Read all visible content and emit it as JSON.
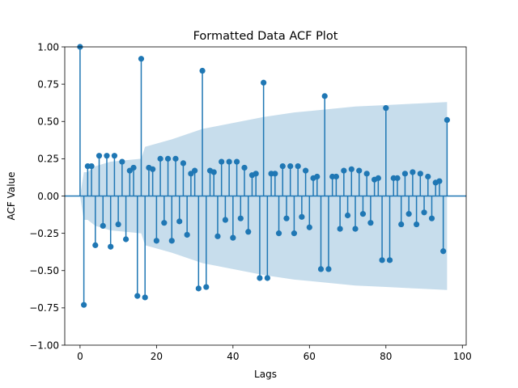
{
  "chart_data": {
    "type": "stem",
    "title": "Formatted Data ACF Plot",
    "xlabel": "Lags",
    "ylabel": "ACF Value",
    "xlim": [
      -4,
      101
    ],
    "ylim": [
      -1.0,
      1.0
    ],
    "x_ticks": [
      0,
      20,
      40,
      60,
      80,
      100
    ],
    "x_tick_labels": [
      "0",
      "20",
      "40",
      "60",
      "80",
      "100"
    ],
    "y_ticks": [
      -1.0,
      -0.75,
      -0.5,
      -0.25,
      0.0,
      0.25,
      0.5,
      0.75,
      1.0
    ],
    "y_tick_labels": [
      "−1.00",
      "−0.75",
      "−0.50",
      "−0.25",
      "0.00",
      "0.25",
      "0.50",
      "0.75",
      "1.00"
    ],
    "grid": false,
    "colors": {
      "stem": "#1f77b4",
      "confidence_band": "#1f77b4"
    },
    "acf": {
      "lags": [
        0,
        1,
        2,
        3,
        4,
        5,
        6,
        7,
        8,
        9,
        10,
        11,
        12,
        13,
        14,
        15,
        16,
        17,
        18,
        19,
        20,
        21,
        22,
        23,
        24,
        25,
        26,
        27,
        28,
        29,
        30,
        31,
        32,
        33,
        34,
        35,
        36,
        37,
        38,
        39,
        40,
        41,
        42,
        43,
        44,
        45,
        46,
        47,
        48,
        49,
        50,
        51,
        52,
        53,
        54,
        55,
        56,
        57,
        58,
        59,
        60,
        61,
        62,
        63,
        64,
        65,
        66,
        67,
        68,
        69,
        70,
        71,
        72,
        73,
        74,
        75,
        76,
        77,
        78,
        79,
        80,
        81,
        82,
        83,
        84,
        85,
        86,
        87,
        88,
        89,
        90,
        91,
        92,
        93,
        94,
        95,
        96
      ],
      "values": [
        1.0,
        -0.73,
        0.2,
        0.2,
        -0.33,
        0.27,
        -0.2,
        0.27,
        -0.34,
        0.27,
        -0.19,
        0.23,
        -0.29,
        0.17,
        0.19,
        -0.67,
        0.92,
        -0.68,
        0.19,
        0.18,
        -0.3,
        0.25,
        -0.18,
        0.25,
        -0.3,
        0.25,
        -0.17,
        0.22,
        -0.26,
        0.15,
        0.17,
        -0.62,
        0.84,
        -0.61,
        0.17,
        0.16,
        -0.27,
        0.23,
        -0.16,
        0.23,
        -0.28,
        0.23,
        -0.15,
        0.19,
        -0.24,
        0.14,
        0.15,
        -0.55,
        0.76,
        -0.55,
        0.15,
        0.15,
        -0.25,
        0.2,
        -0.15,
        0.2,
        -0.25,
        0.2,
        -0.14,
        0.17,
        -0.21,
        0.12,
        0.13,
        -0.49,
        0.67,
        -0.49,
        0.13,
        0.13,
        -0.22,
        0.17,
        -0.13,
        0.18,
        -0.22,
        0.17,
        -0.12,
        0.15,
        -0.18,
        0.11,
        0.12,
        -0.43,
        0.59,
        -0.43,
        0.12,
        0.12,
        -0.19,
        0.15,
        -0.12,
        0.16,
        -0.19,
        0.15,
        -0.11,
        0.13,
        -0.15,
        0.09,
        0.1,
        -0.37,
        0.51
      ]
    },
    "confidence_band": {
      "lags": [
        0,
        1,
        2,
        4,
        8,
        16,
        17,
        24,
        32,
        40,
        48,
        56,
        64,
        72,
        80,
        88,
        96
      ],
      "upper": [
        0.0,
        0.16,
        0.16,
        0.2,
        0.23,
        0.25,
        0.33,
        0.38,
        0.45,
        0.49,
        0.53,
        0.56,
        0.58,
        0.6,
        0.61,
        0.62,
        0.63
      ],
      "lower": [
        0.0,
        -0.16,
        -0.16,
        -0.2,
        -0.23,
        -0.25,
        -0.33,
        -0.38,
        -0.45,
        -0.49,
        -0.53,
        -0.56,
        -0.58,
        -0.6,
        -0.61,
        -0.62,
        -0.63
      ]
    }
  }
}
